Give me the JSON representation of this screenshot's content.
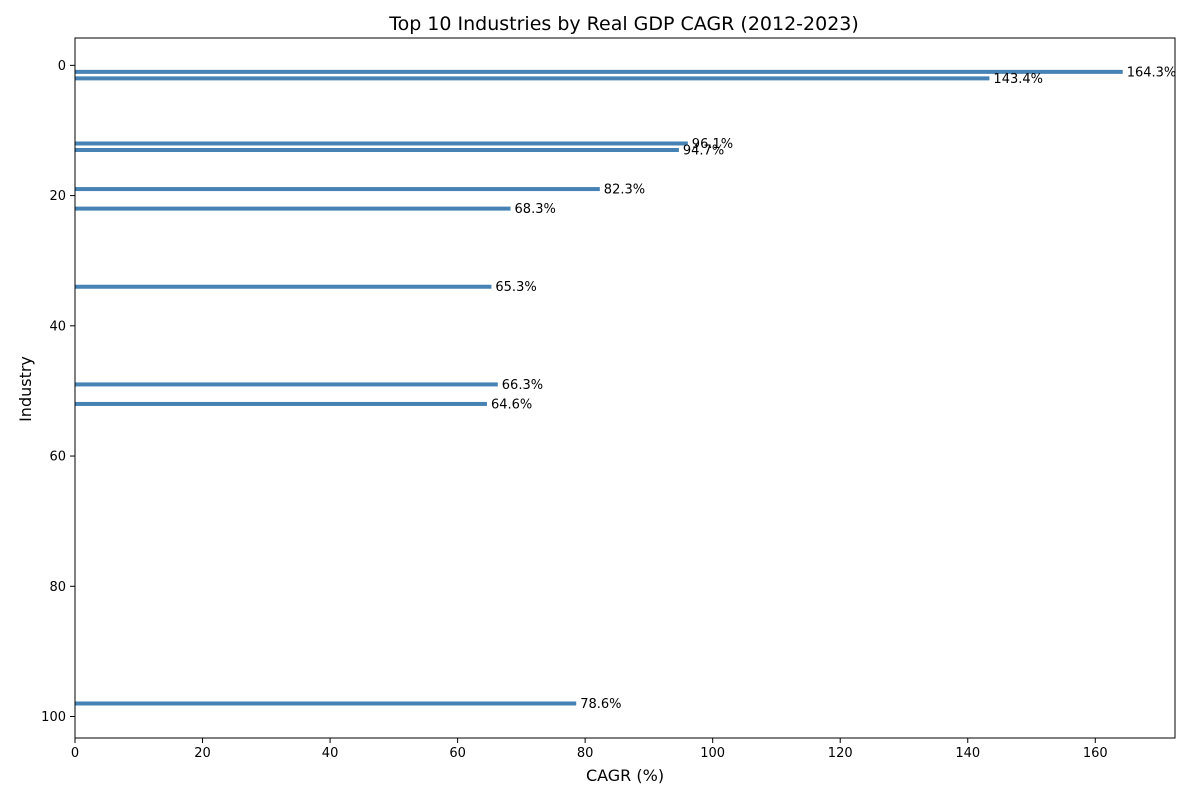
{
  "chart_data": {
    "type": "bar",
    "orientation": "horizontal",
    "title": "Top 10 Industries by Real GDP CAGR (2012-2023)",
    "xlabel": "CAGR (%)",
    "ylabel": "Industry",
    "xlim": [
      0,
      172.5
    ],
    "ylim": [
      103.3,
      -4.2
    ],
    "x_ticks": [
      0,
      20,
      40,
      60,
      80,
      100,
      120,
      140,
      160
    ],
    "y_ticks": [
      0,
      20,
      40,
      60,
      80,
      100
    ],
    "grid": false,
    "bar_color": "#4682b4",
    "bars": [
      {
        "y": 1,
        "value": 164.3,
        "label": "164.3%"
      },
      {
        "y": 2,
        "value": 143.4,
        "label": "143.4%"
      },
      {
        "y": 12,
        "value": 96.1,
        "label": "96.1%"
      },
      {
        "y": 13,
        "value": 94.7,
        "label": "94.7%"
      },
      {
        "y": 19,
        "value": 82.3,
        "label": "82.3%"
      },
      {
        "y": 22,
        "value": 68.3,
        "label": "68.3%"
      },
      {
        "y": 34,
        "value": 65.3,
        "label": "65.3%"
      },
      {
        "y": 49,
        "value": 66.3,
        "label": "66.3%"
      },
      {
        "y": 52,
        "value": 64.6,
        "label": "64.6%"
      },
      {
        "y": 98,
        "value": 78.6,
        "label": "78.6%"
      }
    ]
  }
}
